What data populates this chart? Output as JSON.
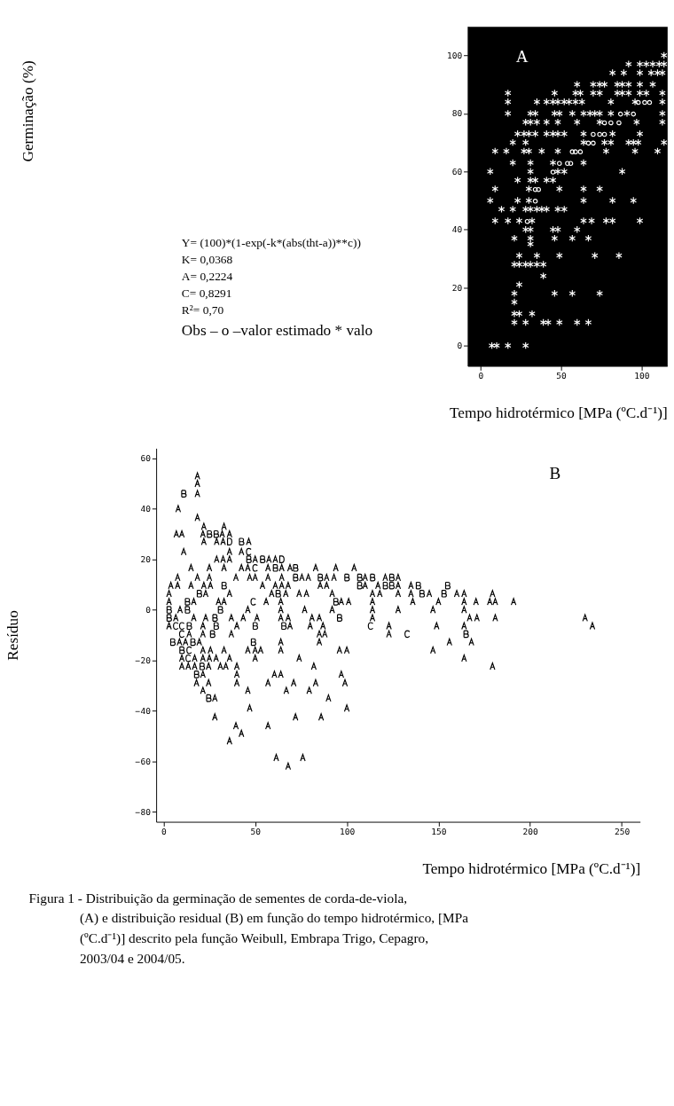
{
  "chart_data": [
    {
      "type": "scatter",
      "ylabel": "Germinação (%)",
      "xlabel": "Tempo hidrotérmico [MPa (ºC.d⁻¹)]",
      "annotations": [
        "A",
        "Y= (100)*(1-exp(-k*(abs(tht-a))**c))",
        "K= 0,0368",
        "A= 0,2224",
        "C= 0,8291",
        "R²= 0,70",
        "Obs – o –valor estimado   * valo"
      ],
      "xlim": [
        -8,
        116
      ],
      "xticks": [
        0,
        50,
        100
      ],
      "ylim": [
        -7,
        110
      ],
      "yticks": [
        0,
        20,
        40,
        60,
        80,
        100
      ],
      "series": [
        {
          "marker": "cross",
          "color": "#ffffff",
          "x": [
            114,
            92,
            99,
            103,
            107,
            111,
            114,
            82,
            89,
            99,
            106,
            110,
            113,
            60,
            70,
            74,
            77,
            85,
            88,
            92,
            99,
            107,
            17,
            46,
            59,
            62,
            70,
            74,
            85,
            88,
            92,
            99,
            103,
            113,
            17,
            35,
            41,
            45,
            48,
            52,
            55,
            59,
            63,
            81,
            96,
            113,
            17,
            31,
            34,
            46,
            49,
            57,
            64,
            68,
            71,
            74,
            81,
            91,
            113,
            28,
            31,
            35,
            41,
            48,
            60,
            74,
            97,
            113,
            23,
            27,
            30,
            34,
            41,
            45,
            48,
            52,
            64,
            82,
            99,
            20,
            28,
            64,
            77,
            81,
            92,
            95,
            98,
            114,
            9,
            16,
            27,
            30,
            38,
            48,
            78,
            96,
            110,
            20,
            31,
            45,
            64,
            6,
            31,
            48,
            52,
            88,
            23,
            31,
            34,
            41,
            45,
            9,
            30,
            49,
            64,
            74,
            6,
            23,
            30,
            64,
            82,
            95,
            13,
            20,
            28,
            31,
            35,
            38,
            41,
            48,
            52,
            9,
            17,
            24,
            32,
            64,
            69,
            78,
            82,
            99,
            28,
            31,
            45,
            48,
            60,
            21,
            31,
            46,
            57,
            67,
            31,
            24,
            35,
            49,
            71,
            86,
            21,
            24,
            28,
            31,
            35,
            39,
            39,
            24,
            21,
            46,
            57,
            74,
            21,
            21,
            24,
            32,
            21,
            28,
            39,
            42,
            49,
            60,
            67,
            7,
            10,
            17,
            28
          ],
          "values": [
            100,
            97,
            97,
            97,
            97,
            97,
            97,
            94,
            94,
            94,
            94,
            94,
            94,
            90,
            90,
            90,
            90,
            90,
            90,
            90,
            90,
            90,
            87,
            87,
            87,
            87,
            87,
            87,
            87,
            87,
            87,
            87,
            87,
            87,
            84,
            84,
            84,
            84,
            84,
            84,
            84,
            84,
            84,
            84,
            84,
            84,
            80,
            80,
            80,
            80,
            80,
            80,
            80,
            80,
            80,
            80,
            80,
            80,
            80,
            77,
            77,
            77,
            77,
            77,
            77,
            77,
            77,
            77,
            73,
            73,
            73,
            73,
            73,
            73,
            73,
            73,
            73,
            73,
            73,
            70,
            70,
            70,
            70,
            70,
            70,
            70,
            70,
            70,
            67,
            67,
            67,
            67,
            67,
            67,
            67,
            67,
            67,
            63,
            63,
            63,
            63,
            60,
            60,
            60,
            60,
            60,
            57,
            57,
            57,
            57,
            57,
            54,
            54,
            54,
            54,
            54,
            50,
            50,
            50,
            50,
            50,
            50,
            47,
            47,
            47,
            47,
            47,
            47,
            47,
            47,
            47,
            43,
            43,
            43,
            43,
            43,
            43,
            43,
            43,
            43,
            40,
            40,
            40,
            40,
            40,
            37,
            37,
            37,
            37,
            37,
            35,
            31,
            31,
            31,
            31,
            31,
            28,
            28,
            28,
            28,
            28,
            28,
            24,
            21,
            18,
            18,
            18,
            18,
            15,
            11,
            11,
            11,
            8,
            8,
            8,
            8,
            8,
            8,
            8,
            0,
            0,
            0,
            0
          ]
        },
        {
          "marker": "circle",
          "color": "#ffffff",
          "x": [
            98,
            102,
            105,
            87,
            95,
            77,
            81,
            86,
            70,
            74,
            77,
            67,
            70,
            57,
            59,
            62,
            49,
            54,
            56,
            45,
            34,
            36,
            34,
            29
          ],
          "values": [
            84,
            84,
            84,
            80,
            80,
            77,
            77,
            77,
            73,
            73,
            73,
            70,
            70,
            67,
            67,
            67,
            63,
            63,
            63,
            60,
            54,
            54,
            50,
            43
          ]
        }
      ]
    },
    {
      "type": "scatter",
      "ylabel": "Resíduo",
      "xlabel": "Tempo hidrotérmico [MPa (ºC.d⁻¹)]",
      "annotations": [
        "B",
        "Figura 1 - Distribuição da germinação de sementes de corda-de-viola, (A) e distribuição residual (B) em função do tempo hidrotérmico, [MPa (ºC.d⁻¹)] descrito pela função Weibull, Embrapa Trigo, Cepagro, 2003/04 e 2004/05."
      ],
      "xlim": [
        -4,
        260
      ],
      "xticks": [
        0,
        50,
        100,
        150,
        200,
        250
      ],
      "ylim": [
        -84,
        64
      ],
      "yticks": [
        -80,
        -60,
        -40,
        -20,
        0,
        20,
        40,
        60
      ],
      "series": [
        {
          "color": "#000000",
          "x": [
            18.5,
            18.5,
            18.5,
            8,
            18.5,
            22,
            33,
            7,
            10,
            21.5,
            32,
            36,
            22,
            29,
            32.5,
            46.5,
            11,
            36,
            42.5,
            29,
            32.5,
            36,
            50,
            57.5,
            61,
            15,
            25,
            33,
            42.5,
            46,
            57,
            64.5,
            69,
            83,
            94,
            104,
            7.7,
            18.5,
            25,
            39.5,
            47,
            50,
            57,
            64.5,
            75.5,
            79,
            89,
            93,
            110,
            121,
            128,
            4,
            7.7,
            15,
            22,
            25.6,
            54,
            61,
            64.5,
            68,
            85.5,
            89,
            110,
            117,
            128,
            135,
            3,
            23,
            36,
            59,
            66.7,
            74,
            78,
            92,
            114,
            118,
            128,
            135,
            145,
            160,
            164,
            179.5,
            3,
            16.5,
            30,
            33,
            56,
            64,
            97,
            101,
            114,
            136,
            150,
            164,
            170.5,
            178,
            181,
            191,
            9,
            46,
            64,
            77,
            92,
            114,
            128,
            147,
            164,
            6.7,
            16.5,
            23,
            37,
            43.5,
            51,
            64,
            68,
            81,
            85,
            114,
            167,
            171,
            181,
            230,
            3,
            21.5,
            40,
            69,
            80,
            87,
            123,
            149,
            164,
            234,
            14,
            21.5,
            37,
            85,
            88,
            123,
            8.7,
            12,
            19.5,
            64,
            85,
            156,
            168,
            21.5,
            25.6,
            33,
            46,
            50,
            53,
            64,
            96,
            100,
            147,
            10,
            17,
            21.5,
            25,
            28.7,
            36,
            50,
            74,
            164,
            10,
            13.5,
            17,
            24.6,
            31,
            34,
            40,
            82,
            179.5,
            21.5,
            40,
            60.5,
            64,
            97,
            18,
            24.6,
            40,
            57,
            71,
            83,
            99,
            21.5,
            46,
            67,
            79.5,
            28,
            90,
            47,
            100,
            28,
            72,
            86,
            39.5,
            57,
            42.5,
            36,
            61.5,
            76,
            68
          ],
          "values": [
            53,
            50,
            46,
            40,
            36.5,
            33,
            33,
            30,
            30,
            30,
            30,
            30,
            27,
            27,
            27,
            27,
            23,
            23,
            23,
            20,
            20,
            20,
            20,
            20,
            20,
            16.6,
            16.6,
            16.6,
            16.6,
            16.6,
            16.6,
            16.6,
            16.6,
            16.6,
            16.6,
            16.6,
            12.8,
            12.8,
            12.8,
            12.8,
            12.8,
            12.8,
            12.8,
            12.8,
            12.8,
            12.8,
            12.8,
            12.8,
            12.8,
            12.8,
            12.8,
            9.6,
            9.6,
            9.6,
            9.6,
            9.6,
            9.6,
            9.6,
            9.6,
            9.6,
            9.6,
            9.6,
            9.6,
            9.6,
            9.6,
            9.6,
            6.4,
            6.4,
            6.4,
            6.4,
            6.4,
            6.4,
            6.4,
            6.4,
            6.4,
            6.4,
            6.4,
            6.4,
            6.4,
            6.4,
            6.4,
            6.4,
            3.2,
            3.2,
            3.2,
            3.2,
            3.2,
            3.2,
            3.2,
            3.2,
            3.2,
            3.2,
            3.2,
            3.2,
            3.2,
            3.2,
            3.2,
            3.2,
            0,
            0,
            0,
            0,
            0,
            0,
            0,
            0,
            0,
            -3.2,
            -3.2,
            -3.2,
            -3.2,
            -3.2,
            -3.2,
            -3.2,
            -3.2,
            -3.2,
            -3.2,
            -3.2,
            -3.2,
            -3.2,
            -3.2,
            -3.2,
            -6.4,
            -6.4,
            -6.4,
            -6.4,
            -6.4,
            -6.4,
            -6.4,
            -6.4,
            -6.4,
            -6.4,
            -9.6,
            -9.6,
            -9.6,
            -9.6,
            -9.6,
            -9.6,
            -12.8,
            -12.8,
            -12.8,
            -12.8,
            -12.8,
            -12.8,
            -12.8,
            -16,
            -16,
            -16,
            -16,
            -16,
            -16,
            -16,
            -16,
            -16,
            -16,
            -19.2,
            -19.2,
            -19.2,
            -19.2,
            -19.2,
            -19.2,
            -19.2,
            -19.2,
            -19.2,
            -22.4,
            -22.4,
            -22.4,
            -22.4,
            -22.4,
            -22.4,
            -22.4,
            -22.4,
            -22.4,
            -25.6,
            -25.6,
            -25.6,
            -25.6,
            -25.6,
            -29,
            -29,
            -29,
            -29,
            -29,
            -29,
            -29,
            -32,
            -32,
            -32,
            -32,
            -35,
            -35,
            -39,
            -39,
            -42.5,
            -42.5,
            -42.5,
            -46,
            -46,
            -49,
            -52,
            -58.6,
            -58.6,
            -62
          ]
        },
        {
          "color": "#000000",
          "x": [
            11,
            25,
            28.7,
            42.5,
            46.5,
            54,
            61,
            72,
            72,
            85.5,
            100,
            107,
            114,
            124.5,
            33,
            107,
            121,
            124.5,
            139,
            155,
            19.5,
            62.5,
            141,
            153,
            13,
            94,
            3,
            13,
            31,
            3,
            28,
            96,
            14,
            28.7,
            50,
            65.6,
            26.7,
            165,
            5,
            16,
            49,
            10,
            21,
            18,
            24.6
          ],
          "values": [
            46,
            30,
            30,
            27,
            20,
            20,
            16.6,
            16.6,
            12.8,
            12.8,
            12.8,
            12.8,
            12.8,
            12.8,
            9.6,
            9.6,
            9.6,
            9.6,
            9.6,
            9.6,
            6.4,
            6.4,
            6.4,
            6.4,
            3.2,
            3.2,
            0,
            0,
            0,
            -3.2,
            -3.2,
            -3.2,
            -6.4,
            -6.4,
            -6.4,
            -6.4,
            -9.6,
            -9.6,
            -12.8,
            -12.8,
            -12.8,
            -16,
            -22.4,
            -25.6,
            -35
          ]
        },
        {
          "color": "#000000",
          "x": [
            46.5,
            50,
            49,
            6.7,
            10,
            113,
            10,
            133,
            14,
            13.5
          ],
          "values": [
            23,
            16.6,
            3.2,
            -6.4,
            -6.4,
            -6.4,
            -9.6,
            -9.6,
            -16,
            -19.2
          ]
        },
        {
          "color": "#000000",
          "x": [
            36,
            64.5
          ],
          "values": [
            27,
            20
          ]
        }
      ]
    }
  ]
}
